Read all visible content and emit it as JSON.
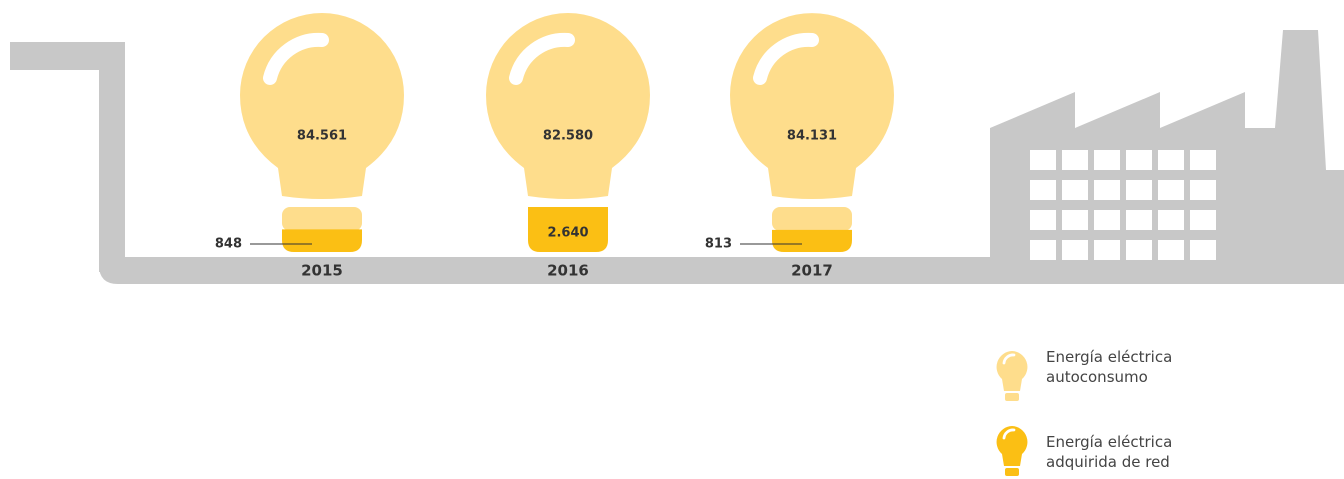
{
  "chart_data": {
    "type": "pictogram",
    "categories": [
      "2015",
      "2016",
      "2017"
    ],
    "series": [
      {
        "name": "Energía eléctrica autoconsumo",
        "color": "#fedd8c",
        "values": [
          84561,
          82580,
          84131
        ],
        "value_labels": [
          "84.561",
          "82.580",
          "84.131"
        ]
      },
      {
        "name": "Energía eléctrica adquirida de red",
        "color": "#fbbf14",
        "values": [
          848,
          2640,
          813
        ],
        "value_labels": [
          "848",
          "2.640",
          "813"
        ]
      }
    ]
  }
}
